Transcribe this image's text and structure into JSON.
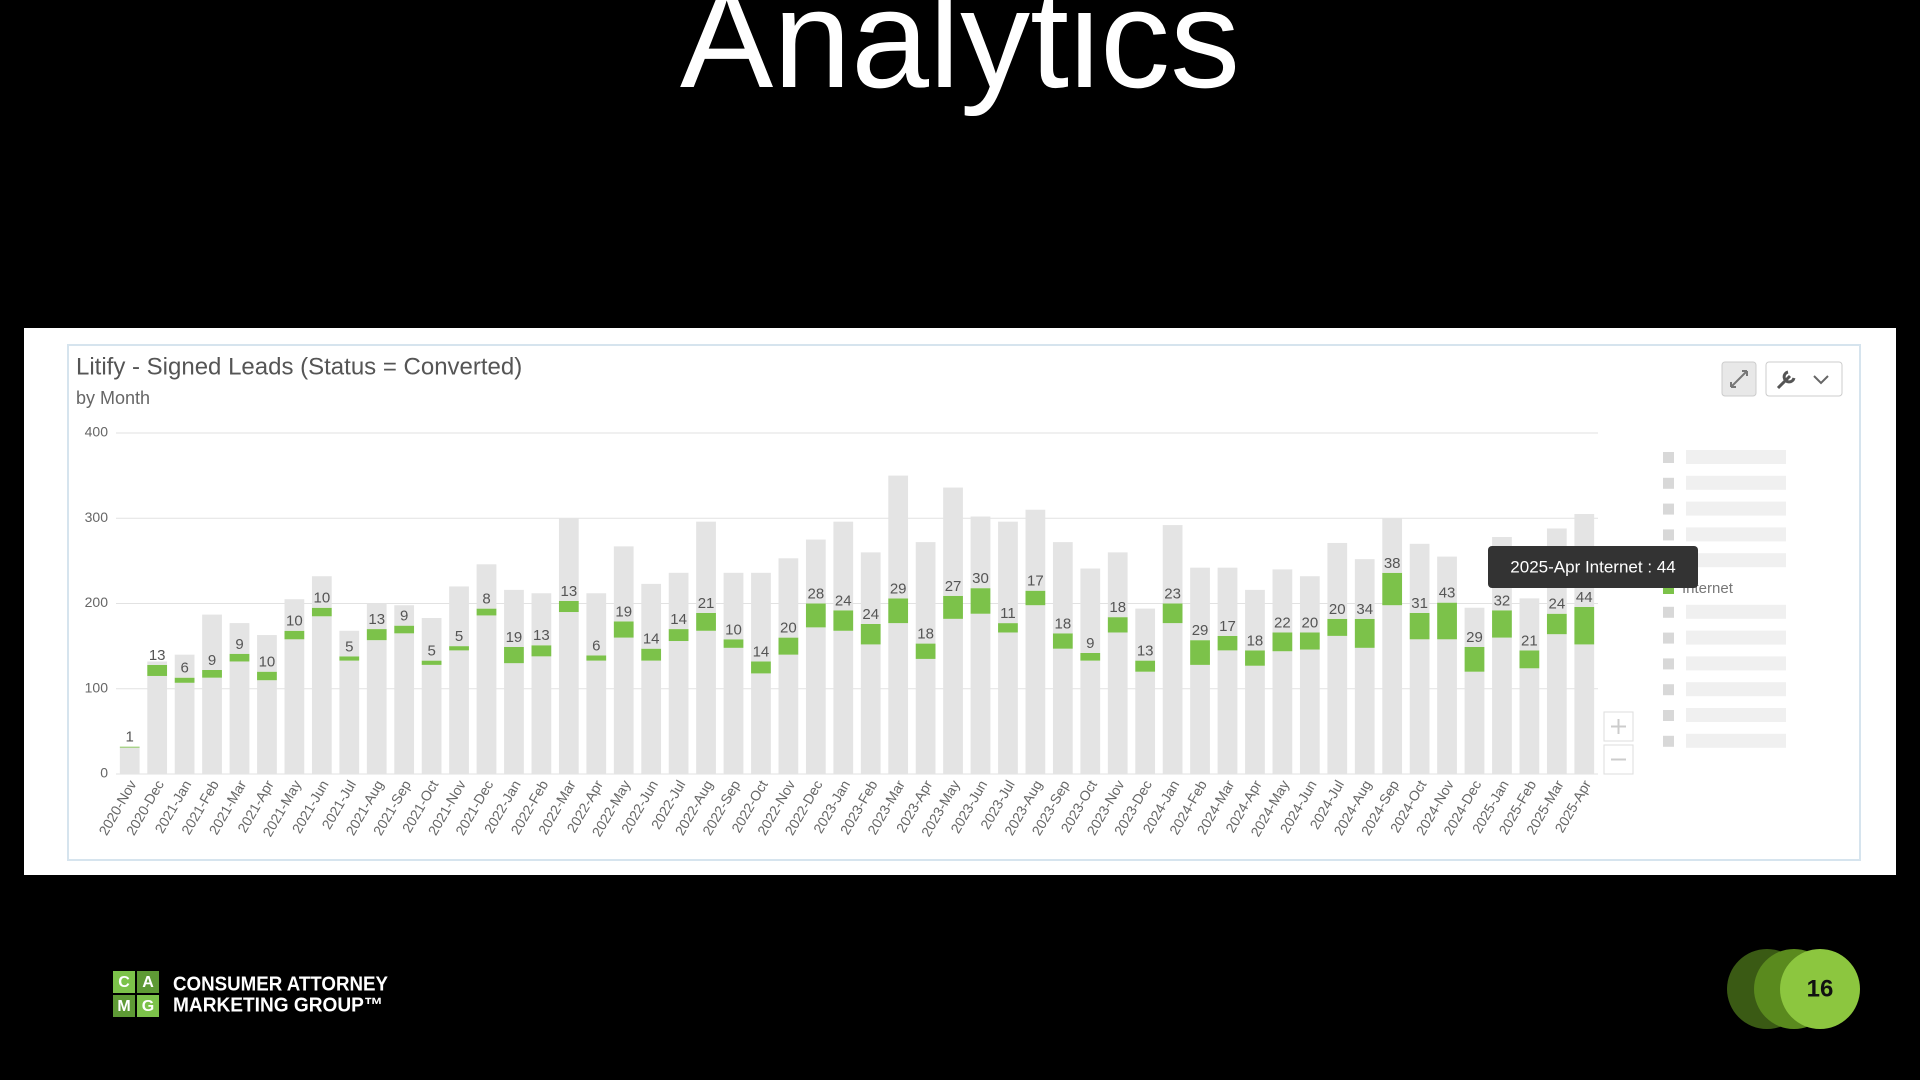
{
  "title": "Analytics",
  "chart_data": {
    "type": "bar",
    "stacked": true,
    "title": "Litify - Signed Leads (Status = Converted)",
    "subtitle": "by Month",
    "categories": [
      "2020-Nov",
      "2020-Dec",
      "2021-Jan",
      "2021-Feb",
      "2021-Mar",
      "2021-Apr",
      "2021-May",
      "2021-Jun",
      "2021-Jul",
      "2021-Aug",
      "2021-Sep",
      "2021-Oct",
      "2021-Nov",
      "2021-Dec",
      "2022-Jan",
      "2022-Feb",
      "2022-Mar",
      "2022-Apr",
      "2022-May",
      "2022-Jun",
      "2022-Jul",
      "2022-Aug",
      "2022-Sep",
      "2022-Oct",
      "2022-Nov",
      "2022-Dec",
      "2023-Jan",
      "2023-Feb",
      "2023-Mar",
      "2023-Apr",
      "2023-May",
      "2023-Jun",
      "2023-Jul",
      "2023-Aug",
      "2023-Sep",
      "2023-Oct",
      "2023-Nov",
      "2023-Dec",
      "2024-Jan",
      "2024-Feb",
      "2024-Mar",
      "2024-Apr",
      "2024-May",
      "2024-Jun",
      "2024-Jul",
      "2024-Aug",
      "2024-Sep",
      "2024-Oct",
      "2024-Nov",
      "2024-Dec",
      "2025-Jan",
      "2025-Feb",
      "2025-Mar",
      "2025-Apr"
    ],
    "series": [
      {
        "color": "#e4e4e4",
        "values": [
          31,
          115,
          107,
          113,
          132,
          110,
          158,
          185,
          133,
          157,
          165,
          128,
          145,
          186,
          130,
          138,
          190,
          133,
          160,
          133,
          156,
          168,
          148,
          118,
          140,
          172,
          168,
          152,
          177,
          135,
          182,
          188,
          166,
          198,
          147,
          133,
          166,
          120,
          177,
          128,
          145,
          127,
          144,
          146,
          162,
          148,
          198,
          158,
          158,
          120,
          160,
          124,
          164,
          152
        ]
      },
      {
        "name": "Internet",
        "color": "#7cc24a",
        "show_labels": true,
        "values": [
          1,
          13,
          6,
          9,
          9,
          10,
          10,
          10,
          5,
          13,
          9,
          5,
          5,
          8,
          19,
          13,
          13,
          6,
          19,
          14,
          14,
          21,
          10,
          14,
          20,
          28,
          24,
          24,
          29,
          18,
          27,
          30,
          11,
          17,
          18,
          9,
          18,
          13,
          23,
          29,
          17,
          18,
          22,
          20,
          20,
          34,
          38,
          31,
          43,
          29,
          32,
          21,
          24,
          44
        ]
      },
      {
        "color": "#e4e4e4",
        "values": [
          0,
          4,
          27,
          65,
          36,
          43,
          37,
          37,
          30,
          30,
          24,
          50,
          70,
          52,
          67,
          61,
          97,
          73,
          88,
          76,
          66,
          107,
          78,
          104,
          93,
          75,
          104,
          84,
          144,
          119,
          127,
          84,
          119,
          95,
          107,
          99,
          76,
          61,
          92,
          85,
          80,
          71,
          74,
          66,
          89,
          70,
          64,
          81,
          54,
          46,
          86,
          61,
          100,
          109
        ]
      }
    ],
    "ylim": [
      0,
      400
    ],
    "yticks": [
      0,
      100,
      200,
      300,
      400
    ],
    "grid": true,
    "tooltip": "2025-Apr Internet : 44"
  },
  "footer": {
    "logo_letters": [
      "C",
      "A",
      "M",
      "G"
    ],
    "company_lines": [
      "CONSUMER ATTORNEY",
      "MARKETING GROUP™"
    ],
    "page_number": 16
  }
}
